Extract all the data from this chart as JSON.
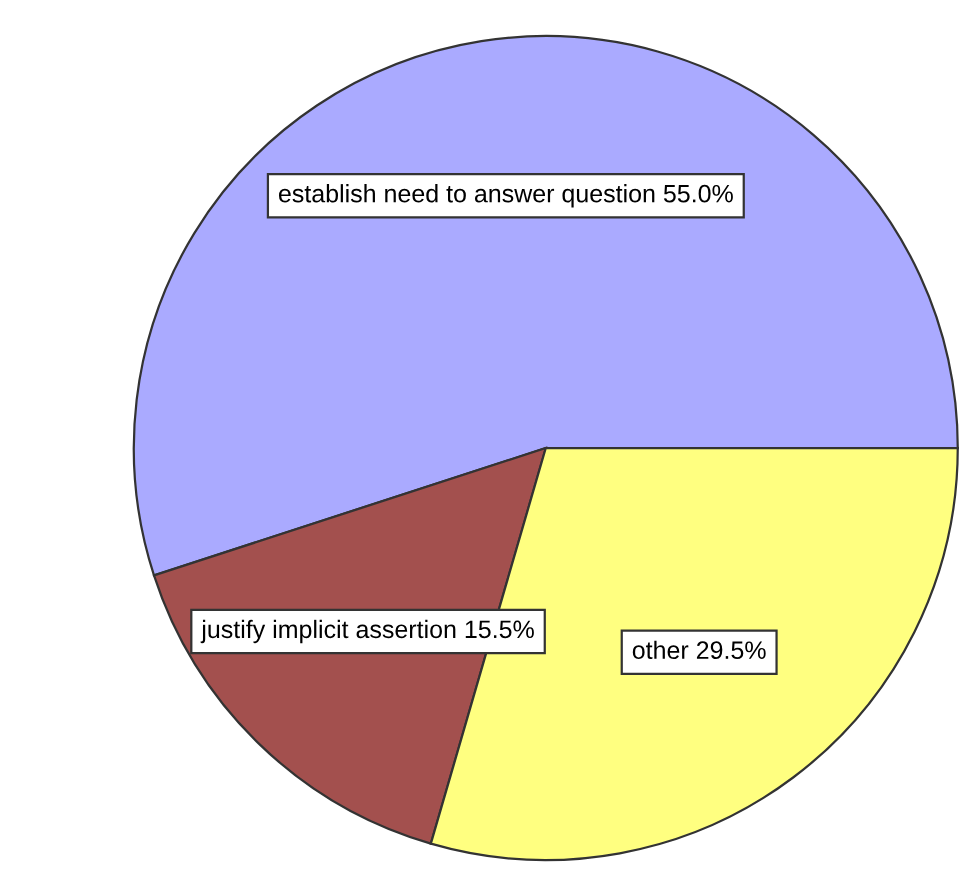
{
  "chart_data": {
    "type": "pie",
    "categories": [
      "establish need to answer question",
      "justify implicit assertion",
      "other"
    ],
    "values": [
      55.0,
      15.5,
      29.5
    ],
    "value_labels": [
      "55.0%",
      "15.5%",
      "29.5%"
    ],
    "colors": [
      "#aaaaff",
      "#a3504e",
      "#ffff80"
    ]
  }
}
